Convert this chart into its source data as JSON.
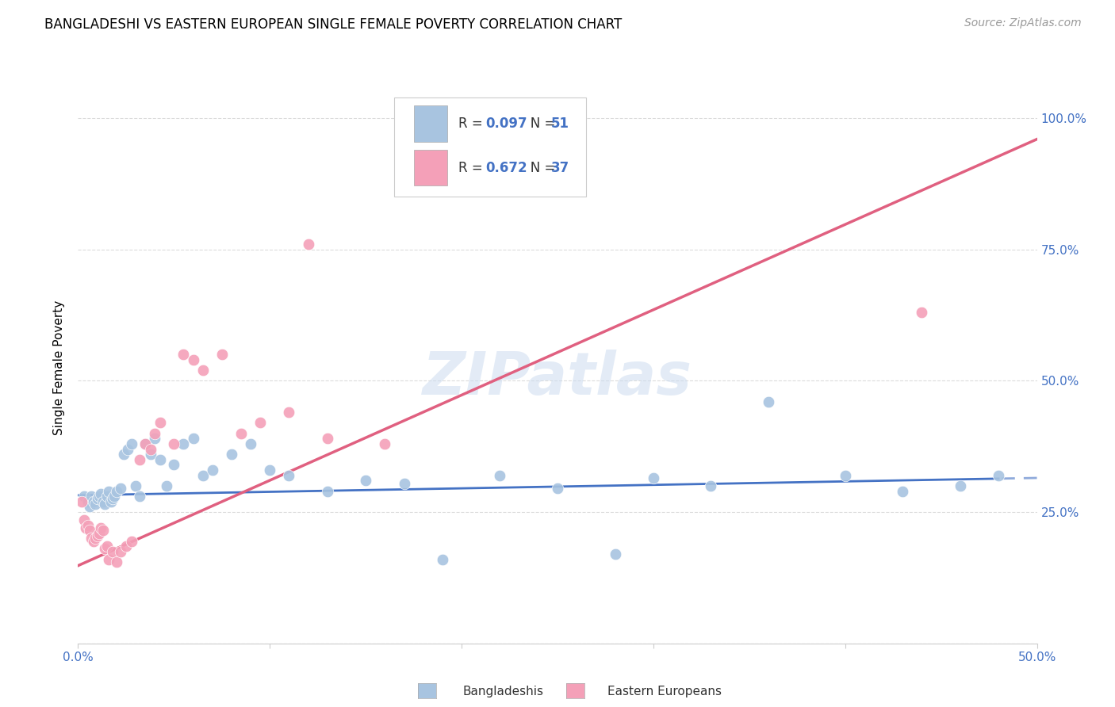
{
  "title": "BANGLADESHI VS EASTERN EUROPEAN SINGLE FEMALE POVERTY CORRELATION CHART",
  "source": "Source: ZipAtlas.com",
  "ylabel": "Single Female Poverty",
  "xlim": [
    0.0,
    0.5
  ],
  "ylim": [
    0.0,
    1.05
  ],
  "bg_color": "#ffffff",
  "grid_color": "#d8d8d8",
  "bangladeshi_color": "#a8c4e0",
  "eastern_color": "#f4a0b8",
  "trend_bangladeshi_color": "#4472c4",
  "trend_eastern_color": "#e06080",
  "legend_R_bangladeshi": "0.097",
  "legend_N_bangladeshi": "51",
  "legend_R_eastern": "0.672",
  "legend_N_eastern": "37",
  "watermark": "ZIPatlas",
  "bangladeshi_x": [
    0.003,
    0.005,
    0.006,
    0.007,
    0.008,
    0.009,
    0.01,
    0.011,
    0.012,
    0.013,
    0.014,
    0.015,
    0.016,
    0.017,
    0.018,
    0.019,
    0.02,
    0.022,
    0.024,
    0.026,
    0.028,
    0.03,
    0.032,
    0.035,
    0.038,
    0.04,
    0.043,
    0.046,
    0.05,
    0.055,
    0.06,
    0.065,
    0.07,
    0.08,
    0.09,
    0.1,
    0.11,
    0.13,
    0.15,
    0.17,
    0.19,
    0.22,
    0.25,
    0.28,
    0.3,
    0.33,
    0.36,
    0.4,
    0.43,
    0.46,
    0.48
  ],
  "bangladeshi_y": [
    0.28,
    0.27,
    0.26,
    0.28,
    0.27,
    0.265,
    0.275,
    0.28,
    0.285,
    0.27,
    0.265,
    0.28,
    0.29,
    0.27,
    0.275,
    0.28,
    0.29,
    0.295,
    0.36,
    0.37,
    0.38,
    0.3,
    0.28,
    0.38,
    0.36,
    0.39,
    0.35,
    0.3,
    0.34,
    0.38,
    0.39,
    0.32,
    0.33,
    0.36,
    0.38,
    0.33,
    0.32,
    0.29,
    0.31,
    0.305,
    0.16,
    0.32,
    0.295,
    0.17,
    0.315,
    0.3,
    0.46,
    0.32,
    0.29,
    0.3,
    0.32
  ],
  "eastern_x": [
    0.002,
    0.003,
    0.004,
    0.005,
    0.006,
    0.007,
    0.008,
    0.009,
    0.01,
    0.011,
    0.012,
    0.013,
    0.014,
    0.015,
    0.016,
    0.018,
    0.02,
    0.022,
    0.025,
    0.028,
    0.032,
    0.035,
    0.038,
    0.04,
    0.043,
    0.05,
    0.055,
    0.06,
    0.065,
    0.075,
    0.085,
    0.095,
    0.11,
    0.13,
    0.16,
    0.44,
    0.12
  ],
  "eastern_y": [
    0.27,
    0.235,
    0.22,
    0.225,
    0.215,
    0.2,
    0.195,
    0.2,
    0.205,
    0.21,
    0.22,
    0.215,
    0.18,
    0.185,
    0.16,
    0.175,
    0.155,
    0.175,
    0.185,
    0.195,
    0.35,
    0.38,
    0.37,
    0.4,
    0.42,
    0.38,
    0.55,
    0.54,
    0.52,
    0.55,
    0.4,
    0.42,
    0.44,
    0.39,
    0.38,
    0.63,
    0.76
  ],
  "trend_b_x0": 0.0,
  "trend_b_x1": 0.5,
  "trend_b_y0": 0.282,
  "trend_b_y1": 0.315,
  "trend_b_solid_end": 0.48,
  "trend_e_x0": 0.0,
  "trend_e_x1": 0.5,
  "trend_e_y0": 0.148,
  "trend_e_y1": 0.96
}
